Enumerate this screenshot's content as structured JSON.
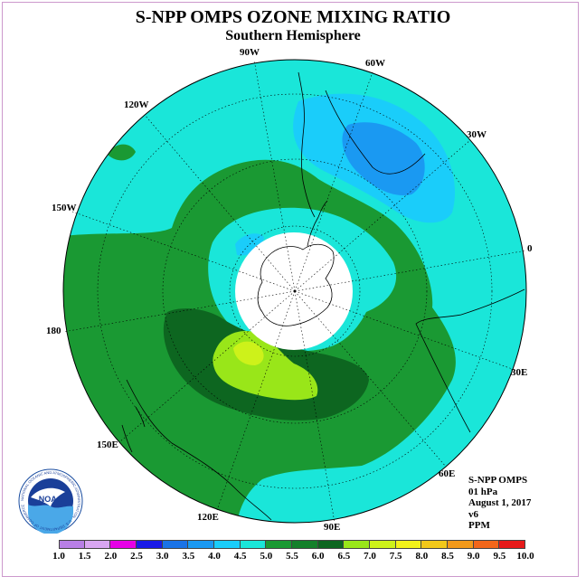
{
  "header": {
    "title": "S-NPP OMPS OZONE MIXING RATIO",
    "subtitle": "Southern Hemisphere"
  },
  "longitude_labels": [
    "90W",
    "60W",
    "30W",
    "0",
    "30E",
    "60E",
    "90E",
    "120E",
    "150E",
    "180",
    "150W",
    "120W"
  ],
  "info_block": {
    "instrument": "S-NPP OMPS",
    "pressure_level": "01 hPa",
    "date": "August 1, 2017",
    "version": "v6",
    "units": "PPM"
  },
  "colorbar": {
    "ticks": [
      "1.0",
      "1.5",
      "2.0",
      "2.5",
      "3.0",
      "3.5",
      "4.0",
      "4.5",
      "5.0",
      "5.5",
      "6.0",
      "6.5",
      "7.0",
      "7.5",
      "8.0",
      "8.5",
      "9.0",
      "9.5",
      "10.0"
    ],
    "colors": [
      "#b87fe6",
      "#d9a6f2",
      "#e600e6",
      "#1a1ae6",
      "#1a73e6",
      "#1a99f2",
      "#1acdfa",
      "#1ae6d9",
      "#1a9933",
      "#14802a",
      "#0d6620",
      "#99e619",
      "#cdf21a",
      "#f2f21a",
      "#f2c81a",
      "#f2991a",
      "#f2661a",
      "#e61a1a",
      "#8c5a33"
    ]
  },
  "logo": {
    "text": "NOAA",
    "ring_text": "NATIONAL OCEANIC AND ATMOSPHERIC ADMINISTRATION · U.S. DEPARTMENT OF COMMERCE"
  },
  "map": {
    "projection": "polar stereographic, south pole",
    "field_colors": {
      "level_4_0": "#1acdfa",
      "level_3_5": "#1a99f2",
      "level_4_5": "#1ae6d9",
      "level_5_0": "#1a9933",
      "level_5_5": "#14802a",
      "level_6_0": "#0d6620",
      "level_6_5": "#99e619",
      "level_7_0": "#cdf21a",
      "polar_night": "#ffffff"
    }
  }
}
